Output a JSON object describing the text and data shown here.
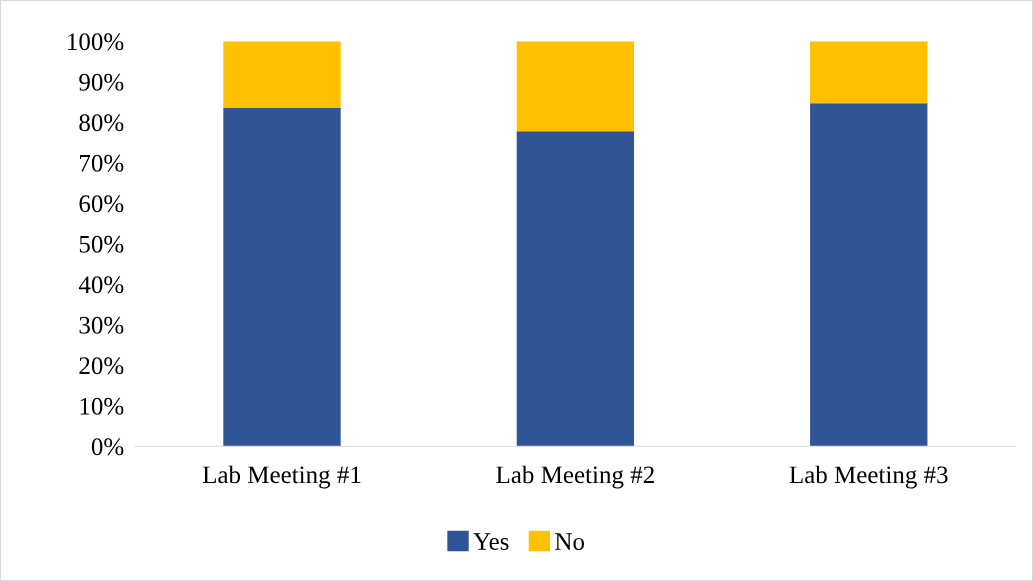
{
  "chart_data": {
    "type": "bar",
    "stacked": true,
    "categories": [
      "Lab Meeting #1",
      "Lab Meeting #2",
      "Lab Meeting #3"
    ],
    "series": [
      {
        "name": "Yes",
        "color": "#2f5597",
        "values": [
          83.5,
          77.8,
          84.7
        ]
      },
      {
        "name": "No",
        "color": "#ffc000",
        "values": [
          16.5,
          22.2,
          15.3
        ]
      }
    ],
    "ylim": [
      0,
      100
    ],
    "yticks": [
      {
        "value": 0,
        "label": "0%"
      },
      {
        "value": 10,
        "label": "10%"
      },
      {
        "value": 20,
        "label": "20%"
      },
      {
        "value": 30,
        "label": "30%"
      },
      {
        "value": 40,
        "label": "40%"
      },
      {
        "value": 50,
        "label": "50%"
      },
      {
        "value": 60,
        "label": "60%"
      },
      {
        "value": 70,
        "label": "70%"
      },
      {
        "value": 80,
        "label": "80%"
      },
      {
        "value": 90,
        "label": "90%"
      },
      {
        "value": 100,
        "label": "100%"
      }
    ],
    "grid": false,
    "legend": "bottom"
  }
}
